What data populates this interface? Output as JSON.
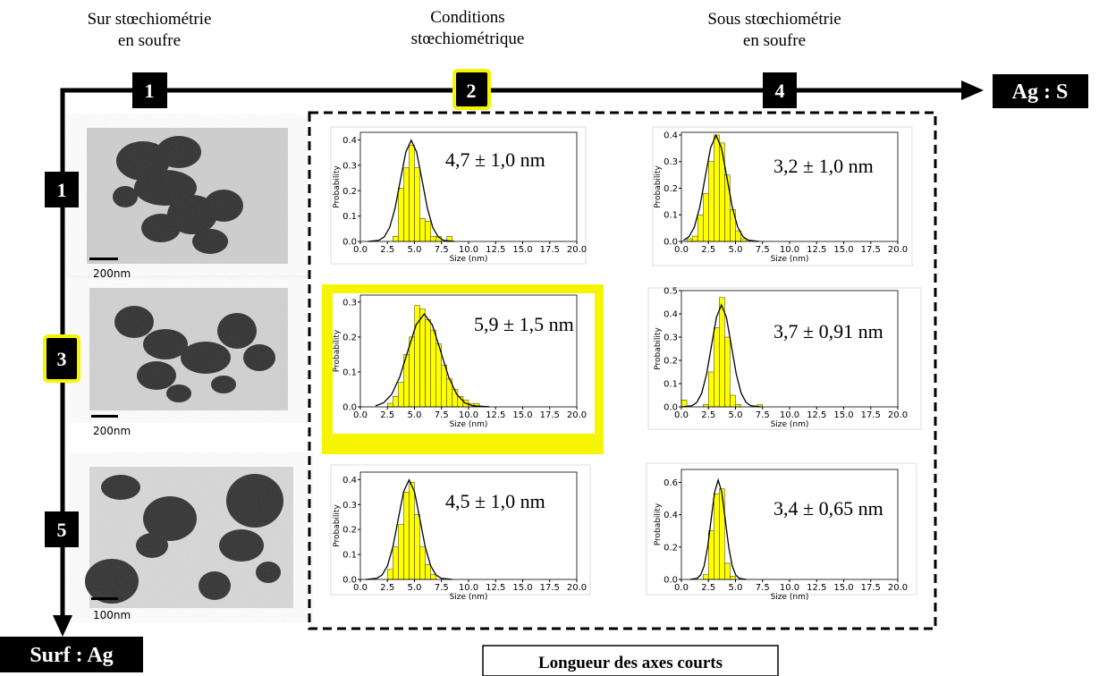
{
  "columns": [
    {
      "label": [
        "Sur stœchiométrie",
        "en soufre"
      ],
      "number": "1"
    },
    {
      "label": [
        "Conditions",
        "stœchiométrique"
      ],
      "number": "2"
    },
    {
      "label": [
        "Sous stœchiométrie",
        "en soufre"
      ],
      "number": "4"
    }
  ],
  "rows": [
    {
      "number": "1",
      "scale": "200nm"
    },
    {
      "number": "3",
      "scale": "200nm"
    },
    {
      "number": "5",
      "scale": "100nm"
    }
  ],
  "x_axis_end": "Ag : S",
  "y_axis_end": "Surf : Ag",
  "footer": "Longueur des axes courts",
  "chart_data": [
    {
      "type": "histogram",
      "color": "#ffff00",
      "annotation": "4,7 ± 1,0 nm",
      "xlabel": "Size (nm)",
      "ylabel": "Probability",
      "bins": [
        3.0,
        3.5,
        4.0,
        4.5,
        5.0,
        5.5,
        6.0,
        6.5,
        7.0,
        7.5,
        8.0,
        8.5
      ],
      "values": [
        0.02,
        0.21,
        0.29,
        0.38,
        0.29,
        0.09,
        0.08,
        0.02,
        0.02,
        0,
        0.02
      ],
      "fit": {
        "color": "#000000",
        "x": [
          0.7,
          1.7,
          2.2,
          2.7,
          3.2,
          3.7,
          4.2,
          4.7,
          5.2,
          5.7,
          6.2,
          6.7,
          7.2,
          7.7,
          8.7
        ],
        "values": [
          0.0001,
          0.0044,
          0.0175,
          0.054,
          0.1296,
          0.242,
          0.3521,
          0.399,
          0.3521,
          0.242,
          0.1296,
          0.054,
          0.0175,
          0.0044,
          0.0001
        ]
      },
      "xlim": [
        0,
        20
      ],
      "xticks": [
        {
          "value": 0,
          "label": "0.0"
        },
        2.5,
        {
          "value": 5,
          "label": "5.0"
        },
        7.5,
        {
          "value": 10,
          "label": "10.0"
        },
        12.5,
        {
          "value": 15,
          "label": "15.0"
        },
        17.5,
        {
          "value": 20,
          "label": "20.0"
        }
      ],
      "ylim": [
        0,
        0.43
      ],
      "yticks": [
        {
          "value": 0,
          "label": "0.0"
        },
        0.1,
        0.2,
        0.3,
        0.4
      ]
    },
    {
      "type": "histogram",
      "color": "#ffff00",
      "annotation": "3,2 ± 1,0 nm",
      "xlabel": "Size (nm)",
      "ylabel": "Probability",
      "bins": [
        0.5,
        1.0,
        1.5,
        2.0,
        2.5,
        3.0,
        3.5,
        4.0,
        4.5,
        5.0,
        5.5,
        6.0
      ],
      "values": [
        0.01,
        0.02,
        0.1,
        0.18,
        0.3,
        0.4,
        0.37,
        0.25,
        0.12,
        0.04,
        0.01
      ],
      "fit": {
        "color": "#000000",
        "x": [
          0.2,
          0.7,
          1.2,
          1.7,
          2.2,
          2.7,
          3.2,
          3.7,
          4.2,
          4.7,
          5.2,
          5.7,
          6.2,
          7.2
        ],
        "values": [
          0.0044,
          0.0175,
          0.054,
          0.1296,
          0.242,
          0.3521,
          0.399,
          0.3521,
          0.242,
          0.1296,
          0.054,
          0.0175,
          0.0044,
          0.0001
        ]
      },
      "xlim": [
        0,
        20
      ],
      "xticks": [
        {
          "value": 0,
          "label": "0.0"
        },
        2.5,
        {
          "value": 5,
          "label": "5.0"
        },
        7.5,
        {
          "value": 10,
          "label": "10.0"
        },
        12.5,
        {
          "value": 15,
          "label": "15.0"
        },
        17.5,
        {
          "value": 20,
          "label": "20.0"
        }
      ],
      "ylim": [
        0,
        0.41
      ],
      "yticks": [
        {
          "value": 0,
          "label": "0.0"
        },
        0.1,
        0.2,
        0.3,
        0.4
      ]
    },
    {
      "type": "histogram",
      "color": "#ffff00",
      "annotation": "5,9 ± 1,5 nm",
      "xlabel": "Size (nm)",
      "ylabel": "Probability",
      "bins": [
        2.5,
        3.0,
        3.5,
        4.0,
        4.5,
        5.0,
        5.5,
        6.0,
        6.5,
        7.0,
        7.5,
        8.0,
        8.5,
        9.0,
        9.5,
        10.0,
        10.5,
        11.0
      ],
      "values": [
        0.01,
        0.03,
        0.07,
        0.15,
        0.2,
        0.29,
        0.28,
        0.25,
        0.22,
        0.18,
        0.12,
        0.08,
        0.05,
        0.03,
        0.02,
        0.01,
        0.01
      ],
      "fit": {
        "color": "#000000",
        "x": [
          1.4,
          2.15,
          2.9,
          3.65,
          4.4,
          5.15,
          5.9,
          6.65,
          7.4,
          8.15,
          8.9,
          9.65,
          10.4,
          11.9
        ],
        "values": [
          0.003,
          0.0117,
          0.036,
          0.0864,
          0.1613,
          0.2347,
          0.266,
          0.2347,
          0.1613,
          0.0864,
          0.036,
          0.0117,
          0.003,
          0.0001
        ]
      },
      "xlim": [
        0,
        20
      ],
      "xticks": [
        {
          "value": 0,
          "label": "0.0"
        },
        2.5,
        {
          "value": 5,
          "label": "5.0"
        },
        7.5,
        {
          "value": 10,
          "label": "10.0"
        },
        12.5,
        {
          "value": 15,
          "label": "15.0"
        },
        17.5,
        {
          "value": 20,
          "label": "20.0"
        }
      ],
      "ylim": [
        0,
        0.32
      ],
      "yticks": [
        {
          "value": 0,
          "label": "0.0"
        },
        0.1,
        0.2,
        0.3
      ]
    },
    {
      "type": "histogram",
      "color": "#ffff00",
      "annotation": "3,7 ± 0,91 nm",
      "xlabel": "Size (nm)",
      "ylabel": "Probability",
      "bins": [
        0,
        0.5,
        1.0,
        1.5,
        2.0,
        2.5,
        3.0,
        3.5,
        4.0,
        4.5,
        5.0,
        5.5,
        6.0,
        6.5,
        7.0,
        7.5
      ],
      "values": [
        0.03,
        0,
        0,
        0,
        0.01,
        0.15,
        0.34,
        0.47,
        0.3,
        0.05,
        0.01,
        0,
        0,
        0,
        0.01
      ],
      "fit": {
        "color": "#000000",
        "x": [
          0.06,
          0.97,
          1.425,
          1.88,
          2.335,
          2.79,
          3.245,
          3.7,
          4.155,
          4.61,
          5.065,
          5.52,
          5.975,
          6.43,
          7.34
        ],
        "values": [
          0.0001,
          0.0049,
          0.0192,
          0.0593,
          0.1422,
          0.2656,
          0.3865,
          0.438,
          0.3865,
          0.2656,
          0.1422,
          0.0593,
          0.0192,
          0.0049,
          0.0001
        ]
      },
      "xlim": [
        0,
        20
      ],
      "xticks": [
        {
          "value": 0,
          "label": "0.0"
        },
        2.5,
        {
          "value": 5,
          "label": "5.0"
        },
        7.5,
        {
          "value": 10,
          "label": "10.0"
        },
        12.5,
        {
          "value": 15,
          "label": "15.0"
        },
        17.5,
        {
          "value": 20,
          "label": "20.0"
        }
      ],
      "ylim": [
        0,
        0.5
      ],
      "yticks": [
        {
          "value": 0,
          "label": "0.0"
        },
        0.1,
        0.2,
        0.3,
        0.4,
        {
          "value": 0.5,
          "label": "0.5"
        }
      ]
    },
    {
      "type": "histogram",
      "color": "#ffff00",
      "annotation": "4,5 ± 1,0 nm",
      "xlabel": "Size (nm)",
      "ylabel": "Probability",
      "bins": [
        2.5,
        3.0,
        3.5,
        4.0,
        4.5,
        5.0,
        5.5,
        6.0,
        6.5,
        7.0
      ],
      "values": [
        0.04,
        0.13,
        0.22,
        0.35,
        0.39,
        0.26,
        0.13,
        0.06,
        0.02
      ],
      "fit": {
        "color": "#000000",
        "x": [
          0.5,
          1.5,
          2.0,
          2.5,
          3.0,
          3.5,
          4.0,
          4.5,
          5.0,
          5.5,
          6.0,
          6.5,
          7.0,
          7.5,
          8.5
        ],
        "values": [
          0.0001,
          0.0044,
          0.0175,
          0.054,
          0.1296,
          0.242,
          0.3521,
          0.399,
          0.3521,
          0.242,
          0.1296,
          0.054,
          0.0175,
          0.0044,
          0.0001
        ]
      },
      "xlim": [
        0,
        20
      ],
      "xticks": [
        {
          "value": 0,
          "label": "0.0"
        },
        2.5,
        {
          "value": 5,
          "label": "5.0"
        },
        7.5,
        {
          "value": 10,
          "label": "10.0"
        },
        12.5,
        {
          "value": 15,
          "label": "15.0"
        },
        17.5,
        {
          "value": 20,
          "label": "20.0"
        }
      ],
      "ylim": [
        0,
        0.43
      ],
      "yticks": [
        {
          "value": 0,
          "label": "0.0"
        },
        0.1,
        0.2,
        0.3,
        0.4
      ]
    },
    {
      "type": "histogram",
      "color": "#ffff00",
      "annotation": "3,4 ± 0,65 nm",
      "xlabel": "Size (nm)",
      "ylabel": "Probability",
      "bins": [
        2.0,
        2.5,
        3.0,
        3.5,
        4.0,
        4.5,
        5.0
      ],
      "values": [
        0.03,
        0.3,
        0.53,
        0.56,
        0.1,
        0.02
      ],
      "fit": {
        "color": "#000000",
        "x": [
          0.8,
          1.45,
          1.775,
          2.1,
          2.425,
          2.75,
          3.075,
          3.4,
          3.725,
          4.05,
          4.375,
          4.7,
          5.025,
          5.35,
          6.0
        ],
        "values": [
          0.0002,
          0.0068,
          0.027,
          0.0831,
          0.1994,
          0.3724,
          0.5419,
          0.614,
          0.5419,
          0.3724,
          0.1994,
          0.0831,
          0.027,
          0.0068,
          0.0002
        ]
      },
      "xlim": [
        0,
        20
      ],
      "xticks": [
        {
          "value": 0,
          "label": "0.0"
        },
        2.5,
        {
          "value": 5,
          "label": "5.0"
        },
        7.5,
        {
          "value": 10,
          "label": "10.0"
        },
        12.5,
        {
          "value": 15,
          "label": "15.0"
        },
        17.5,
        {
          "value": 20,
          "label": "20.0"
        }
      ],
      "ylim": [
        0,
        0.68
      ],
      "yticks": [
        {
          "value": 0,
          "label": "0.0"
        },
        0.2,
        0.4,
        0.6
      ]
    }
  ]
}
